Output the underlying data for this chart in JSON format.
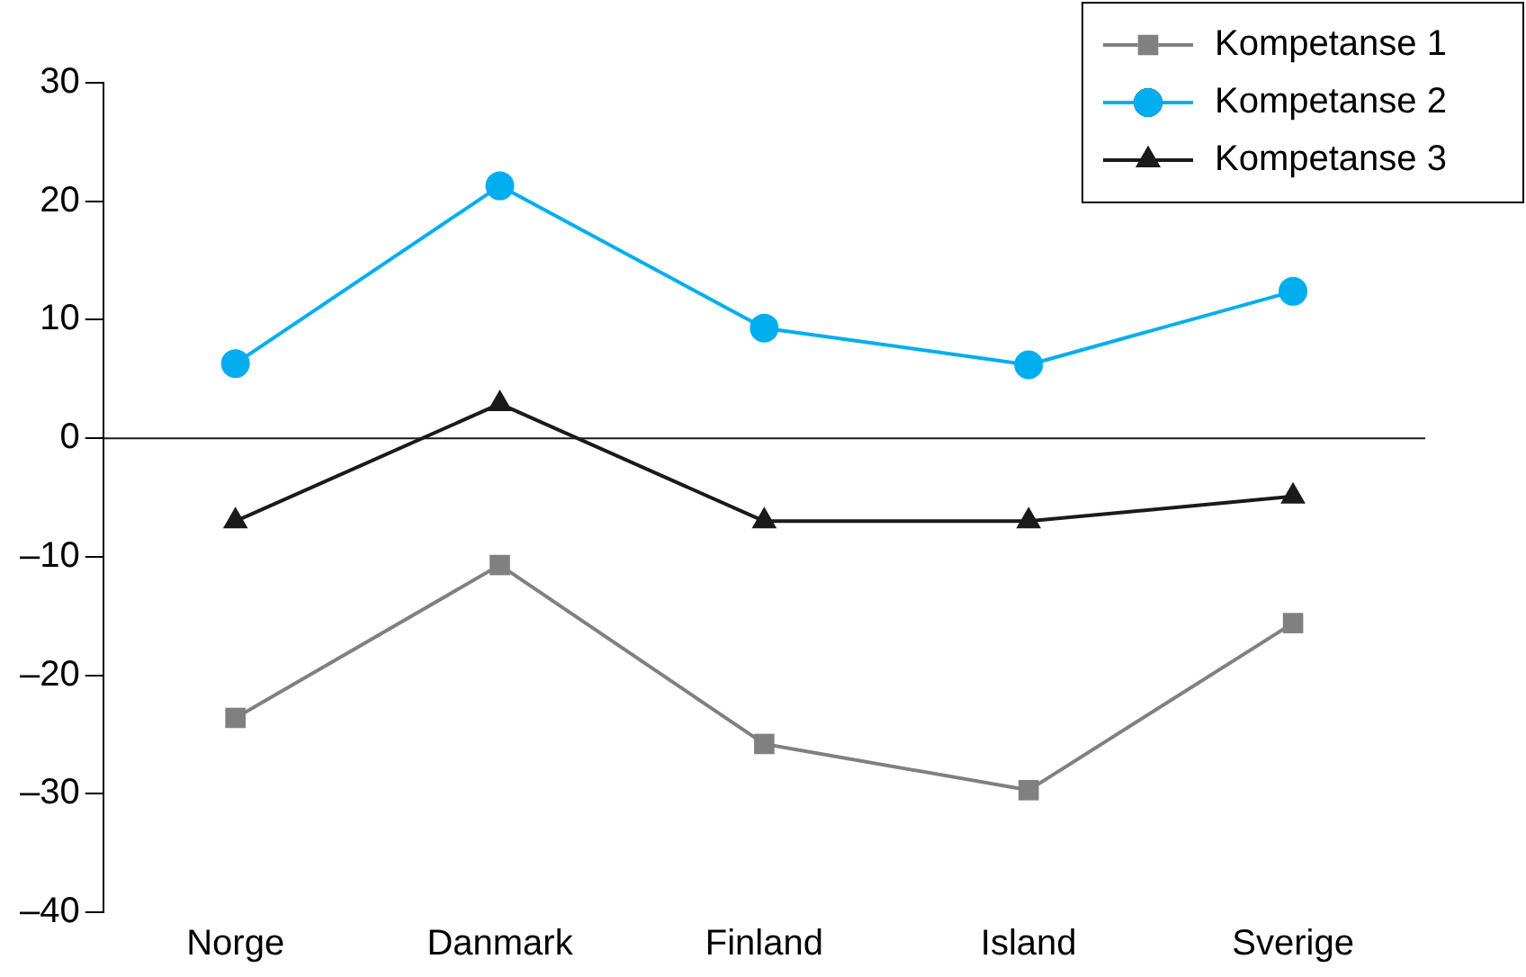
{
  "chart_data": {
    "type": "line",
    "categories": [
      "Norge",
      "Danmark",
      "Finland",
      "Island",
      "Sverige"
    ],
    "series": [
      {
        "name": "Kompetanse 1",
        "color": "#808080",
        "marker": "square",
        "values": [
          -23.6,
          -10.7,
          -25.8,
          -29.7,
          -15.6
        ]
      },
      {
        "name": "Kompetanse 2",
        "color": "#00aeef",
        "marker": "circle",
        "values": [
          6.3,
          21.3,
          9.3,
          6.2,
          12.4
        ]
      },
      {
        "name": "Kompetanse 3",
        "color": "#1a1a1a",
        "marker": "triangle",
        "values": [
          -7.0,
          2.9,
          -7.0,
          -7.0,
          -4.9
        ]
      }
    ],
    "ylim": [
      -40,
      30
    ],
    "yticks": [
      {
        "value": -40,
        "label": "–40"
      },
      {
        "value": -30,
        "label": "–30"
      },
      {
        "value": -20,
        "label": "–20"
      },
      {
        "value": -10,
        "label": "–10"
      },
      0,
      10,
      20,
      30
    ],
    "grid": false,
    "legend": "top right",
    "ref_lines": [
      {
        "axis": "y",
        "value": 0,
        "color": "#1a1a1a"
      }
    ]
  }
}
